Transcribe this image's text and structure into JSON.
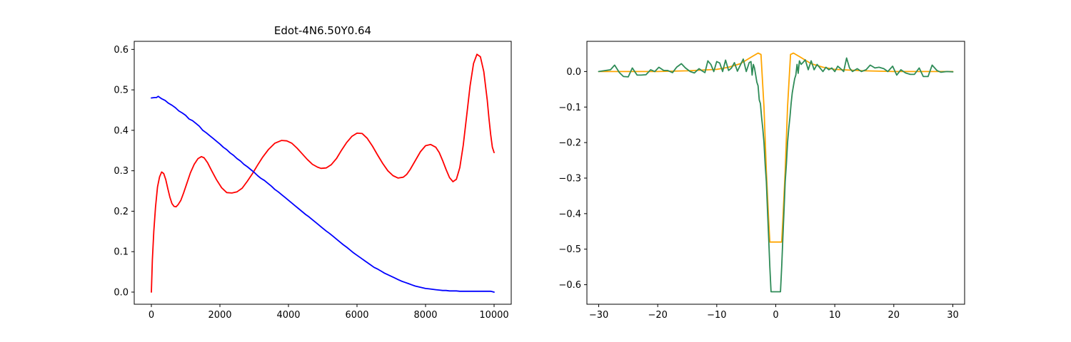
{
  "chart_data": [
    {
      "type": "line",
      "title": "Edot-4N6.50Y0.64",
      "xlabel": "",
      "ylabel": "",
      "xlim": [
        -500,
        10500
      ],
      "ylim": [
        -0.03,
        0.62
      ],
      "xticks": [
        0,
        2000,
        4000,
        6000,
        8000,
        10000
      ],
      "xtick_labels": [
        "0",
        "2000",
        "4000",
        "6000",
        "8000",
        "10000"
      ],
      "yticks": [
        0.0,
        0.1,
        0.2,
        0.3,
        0.4,
        0.5,
        0.6
      ],
      "ytick_labels": [
        "0.0",
        "0.1",
        "0.2",
        "0.3",
        "0.4",
        "0.5",
        "0.6"
      ],
      "grid": false,
      "legend": "none",
      "series": [
        {
          "color": "#ff0000",
          "x": [
            0,
            30,
            70,
            120,
            180,
            240,
            300,
            360,
            420,
            480,
            540,
            600,
            660,
            720,
            780,
            860,
            940,
            1040,
            1140,
            1250,
            1360,
            1460,
            1540,
            1640,
            1760,
            1900,
            2050,
            2200,
            2350,
            2500,
            2650,
            2800,
            2950,
            3100,
            3250,
            3420,
            3600,
            3800,
            3950,
            4100,
            4250,
            4400,
            4550,
            4700,
            4850,
            4950,
            5100,
            5250,
            5400,
            5550,
            5700,
            5850,
            6000,
            6150,
            6300,
            6450,
            6600,
            6750,
            6900,
            7050,
            7200,
            7350,
            7450,
            7550,
            7700,
            7850,
            8000,
            8150,
            8300,
            8400,
            8500,
            8600,
            8700,
            8800,
            8900,
            9000,
            9100,
            9200,
            9300,
            9400,
            9500,
            9600,
            9700,
            9800,
            9850,
            9900,
            9950,
            10000
          ],
          "y": [
            0.0,
            0.08,
            0.15,
            0.21,
            0.26,
            0.285,
            0.297,
            0.293,
            0.278,
            0.256,
            0.235,
            0.219,
            0.212,
            0.211,
            0.216,
            0.227,
            0.245,
            0.27,
            0.295,
            0.316,
            0.33,
            0.335,
            0.332,
            0.32,
            0.3,
            0.278,
            0.258,
            0.246,
            0.245,
            0.248,
            0.257,
            0.274,
            0.293,
            0.314,
            0.334,
            0.353,
            0.368,
            0.375,
            0.374,
            0.368,
            0.356,
            0.342,
            0.328,
            0.316,
            0.309,
            0.306,
            0.307,
            0.315,
            0.33,
            0.351,
            0.37,
            0.385,
            0.393,
            0.392,
            0.38,
            0.361,
            0.339,
            0.318,
            0.3,
            0.288,
            0.282,
            0.284,
            0.291,
            0.303,
            0.325,
            0.347,
            0.362,
            0.365,
            0.358,
            0.345,
            0.325,
            0.303,
            0.283,
            0.273,
            0.279,
            0.308,
            0.363,
            0.436,
            0.51,
            0.565,
            0.588,
            0.582,
            0.545,
            0.475,
            0.43,
            0.39,
            0.358,
            0.345
          ]
        },
        {
          "color": "#0000ff",
          "x": [
            0,
            100,
            150,
            200,
            300,
            400,
            500,
            600,
            700,
            800,
            900,
            1000,
            1100,
            1200,
            1300,
            1400,
            1500,
            1600,
            1700,
            1800,
            1900,
            2000,
            2100,
            2200,
            2300,
            2400,
            2500,
            2600,
            2700,
            2800,
            2900,
            3000,
            3100,
            3200,
            3300,
            3400,
            3500,
            3600,
            3700,
            3800,
            3900,
            4000,
            4100,
            4200,
            4300,
            4400,
            4500,
            4600,
            4700,
            4800,
            4900,
            5000,
            5100,
            5200,
            5300,
            5400,
            5500,
            5600,
            5700,
            5800,
            5900,
            6000,
            6100,
            6200,
            6300,
            6400,
            6500,
            6600,
            6700,
            6800,
            6900,
            7000,
            7100,
            7200,
            7300,
            7400,
            7500,
            7600,
            7700,
            7800,
            7900,
            8000,
            8100,
            8200,
            8300,
            8400,
            8500,
            8600,
            8700,
            8800,
            8900,
            9000,
            9100,
            9200,
            9300,
            9400,
            9500,
            9600,
            9700,
            9800,
            9900,
            9950,
            10000
          ],
          "y": [
            0.48,
            0.481,
            0.481,
            0.484,
            0.478,
            0.474,
            0.467,
            0.462,
            0.456,
            0.448,
            0.443,
            0.437,
            0.428,
            0.424,
            0.417,
            0.41,
            0.4,
            0.394,
            0.387,
            0.38,
            0.373,
            0.366,
            0.358,
            0.352,
            0.344,
            0.338,
            0.33,
            0.324,
            0.316,
            0.31,
            0.303,
            0.296,
            0.288,
            0.281,
            0.276,
            0.269,
            0.262,
            0.254,
            0.248,
            0.241,
            0.234,
            0.227,
            0.22,
            0.213,
            0.206,
            0.199,
            0.192,
            0.186,
            0.179,
            0.172,
            0.165,
            0.158,
            0.151,
            0.145,
            0.138,
            0.131,
            0.124,
            0.117,
            0.111,
            0.104,
            0.097,
            0.091,
            0.085,
            0.079,
            0.073,
            0.067,
            0.061,
            0.057,
            0.052,
            0.047,
            0.043,
            0.039,
            0.035,
            0.031,
            0.027,
            0.024,
            0.021,
            0.018,
            0.015,
            0.013,
            0.011,
            0.009,
            0.008,
            0.007,
            0.006,
            0.005,
            0.004,
            0.004,
            0.003,
            0.003,
            0.003,
            0.002,
            0.002,
            0.002,
            0.002,
            0.002,
            0.002,
            0.002,
            0.002,
            0.002,
            0.002,
            0.001,
            0.0
          ]
        }
      ]
    },
    {
      "type": "line",
      "title": "",
      "xlabel": "",
      "ylabel": "",
      "xlim": [
        -32,
        32
      ],
      "ylim": [
        -0.655,
        0.085
      ],
      "xticks": [
        -30,
        -20,
        -10,
        0,
        10,
        20,
        30
      ],
      "xtick_labels": [
        "−30",
        "−20",
        "−10",
        "0",
        "10",
        "20",
        "30"
      ],
      "yticks": [
        0.0,
        -0.1,
        -0.2,
        -0.3,
        -0.4,
        -0.5,
        -0.6
      ],
      "ytick_labels": [
        "0.0",
        "−0.1",
        "−0.2",
        "−0.3",
        "−0.4",
        "−0.5",
        "−0.6"
      ],
      "grid": false,
      "legend": "none",
      "series": [
        {
          "color": "#ffa500",
          "x": [
            -30,
            -25,
            -20,
            -15,
            -10,
            -8,
            -6,
            -5,
            -4,
            -3,
            -2.5,
            -2,
            -1.6,
            -1.2,
            -1.0,
            -0.8,
            0,
            0.8,
            1.0,
            1.2,
            1.6,
            2.0,
            2.5,
            3.0,
            4,
            5,
            6,
            8,
            10,
            15,
            20,
            25,
            30
          ],
          "y": [
            0.0,
            0.0,
            0.0,
            0.002,
            0.006,
            0.012,
            0.022,
            0.032,
            0.042,
            0.052,
            0.048,
            -0.1,
            -0.28,
            -0.42,
            -0.48,
            -0.48,
            -0.48,
            -0.48,
            -0.48,
            -0.42,
            -0.28,
            -0.1,
            0.048,
            0.052,
            0.042,
            0.032,
            0.022,
            0.012,
            0.006,
            0.002,
            0.0,
            0.0,
            0.0
          ]
        },
        {
          "color": "#2e8b57",
          "x": [
            -30,
            -28,
            -27.3,
            -26.5,
            -25.8,
            -25,
            -24.3,
            -23.5,
            -22.8,
            -22,
            -21.2,
            -20.5,
            -19.8,
            -19,
            -18.3,
            -17.5,
            -16.8,
            -16,
            -15.3,
            -14.5,
            -13.8,
            -13,
            -12.5,
            -12,
            -11.5,
            -11,
            -10.5,
            -10,
            -9.5,
            -9,
            -8.5,
            -8,
            -7.5,
            -7,
            -6.5,
            -6,
            -5.5,
            -5,
            -4.5,
            -4.2,
            -4,
            -3.8,
            -3.6,
            -3.4,
            -3.2,
            -3.0,
            -2.8,
            -2.6,
            -2.4,
            -2.2,
            -2.0,
            -1.8,
            -1.6,
            -1.4,
            -1.2,
            -1.0,
            -0.8,
            0.8,
            1.0,
            1.2,
            1.4,
            1.6,
            1.8,
            2.0,
            2.2,
            2.4,
            2.6,
            2.8,
            3.0,
            3.2,
            3.4,
            3.6,
            3.8,
            4.0,
            4.3,
            4.6,
            5,
            5.5,
            6,
            6.5,
            7,
            7.5,
            8,
            8.5,
            9,
            9.5,
            10,
            10.5,
            11,
            11.5,
            12,
            12.5,
            13,
            13.8,
            14.5,
            15.3,
            16,
            16.8,
            17.5,
            18.3,
            19,
            19.8,
            20.5,
            21.2,
            22,
            22.8,
            23.5,
            24.3,
            25,
            25.8,
            26.5,
            27.3,
            28,
            29,
            30
          ],
          "y": [
            0.0,
            0.005,
            0.018,
            -0.003,
            -0.014,
            -0.015,
            0.01,
            -0.01,
            -0.01,
            -0.009,
            0.005,
            0.0,
            0.012,
            0.003,
            0.003,
            -0.003,
            0.012,
            0.022,
            0.01,
            0.0,
            -0.004,
            0.008,
            0.002,
            -0.003,
            0.03,
            0.02,
            0.0,
            0.028,
            0.024,
            0.0,
            0.032,
            0.003,
            0.01,
            0.025,
            0.001,
            0.018,
            0.035,
            0.0,
            0.025,
            0.028,
            -0.01,
            0.02,
            0.01,
            -0.01,
            -0.03,
            -0.04,
            -0.08,
            -0.09,
            -0.13,
            -0.16,
            -0.2,
            -0.26,
            -0.31,
            -0.39,
            -0.47,
            -0.55,
            -0.62,
            -0.62,
            -0.55,
            -0.47,
            -0.39,
            -0.31,
            -0.26,
            -0.2,
            -0.16,
            -0.13,
            -0.09,
            -0.06,
            -0.04,
            -0.02,
            -0.01,
            0.02,
            -0.005,
            0.03,
            0.02,
            0.025,
            0.033,
            0.005,
            0.03,
            0.005,
            0.02,
            0.01,
            0.0,
            0.012,
            0.005,
            0.01,
            0.0,
            0.015,
            0.008,
            0.0,
            0.038,
            0.01,
            0.0,
            0.008,
            0.0,
            0.005,
            0.018,
            0.01,
            0.012,
            0.008,
            0.0,
            0.015,
            -0.01,
            0.005,
            -0.004,
            -0.008,
            -0.008,
            0.01,
            -0.014,
            -0.014,
            0.018,
            0.003,
            -0.002,
            0.0,
            -0.001
          ]
        }
      ]
    }
  ]
}
